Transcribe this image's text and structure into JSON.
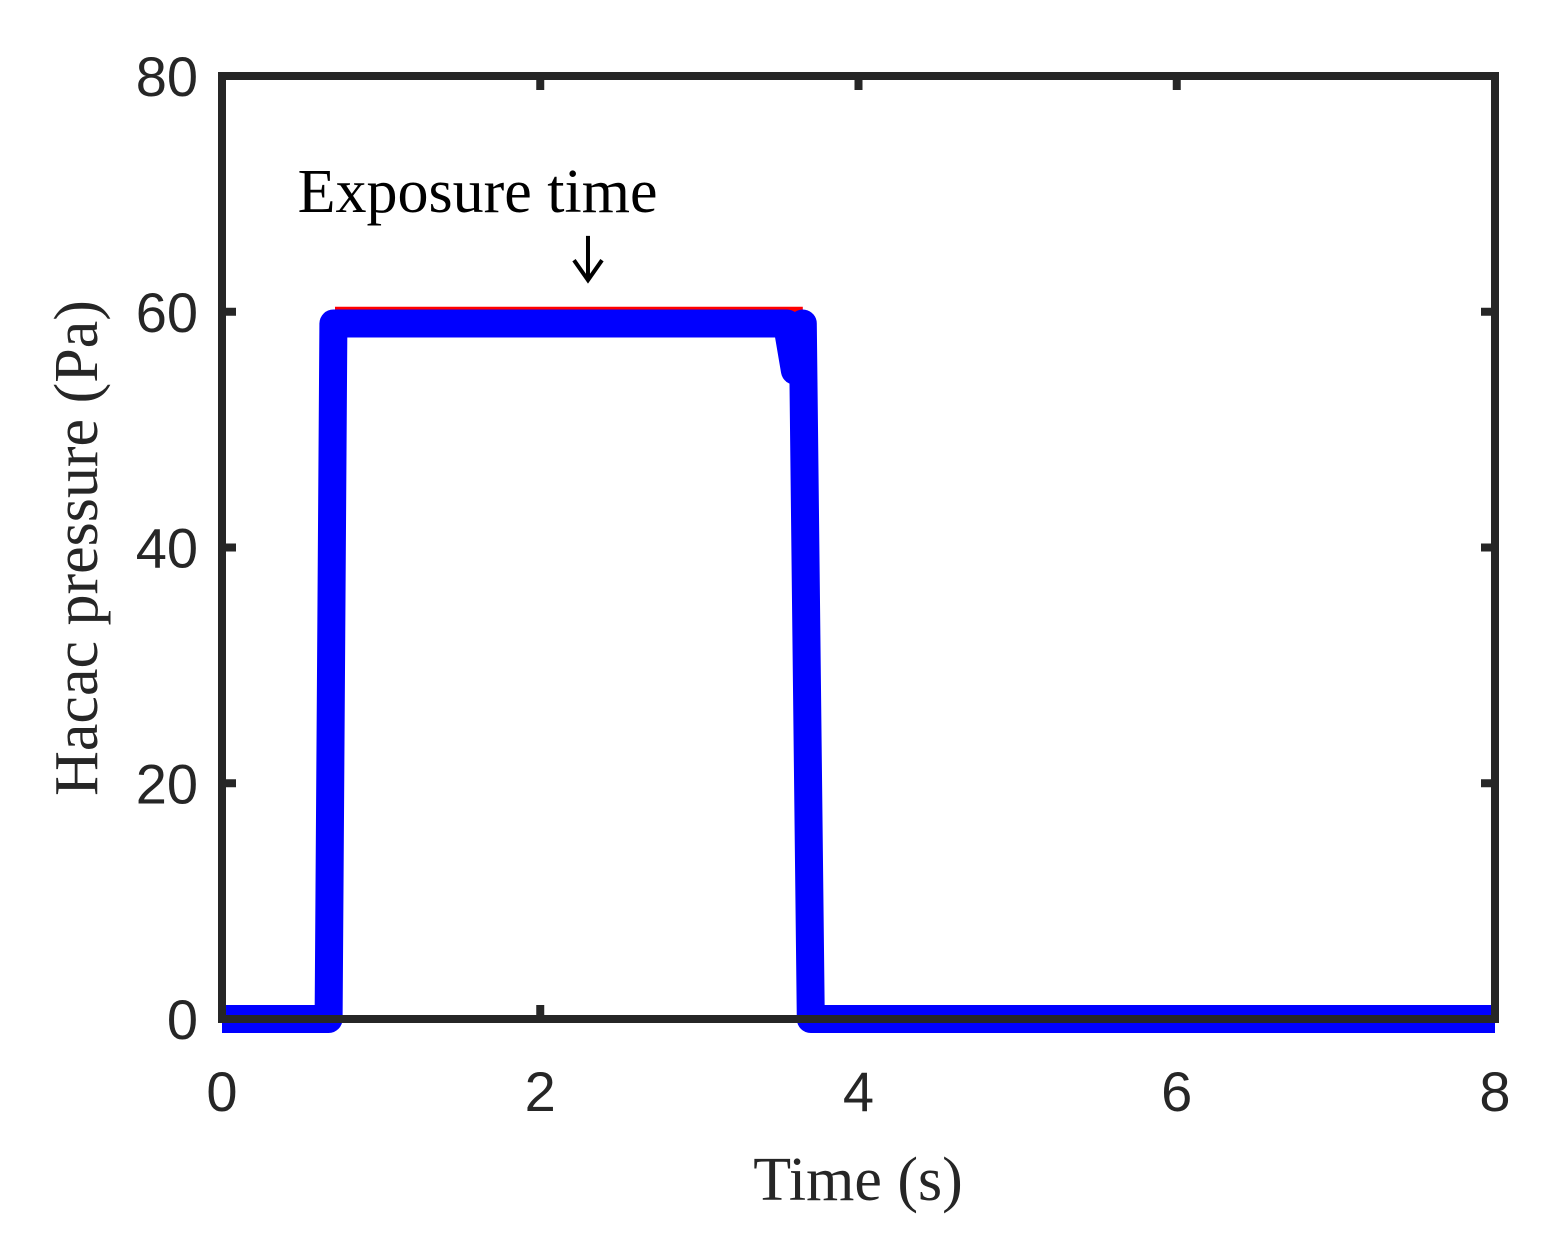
{
  "chart_data": {
    "type": "line",
    "xlabel": "Time (s)",
    "ylabel": "Hacac pressure (Pa)",
    "xlim": [
      0,
      8
    ],
    "ylim": [
      0,
      80
    ],
    "xticks": [
      0,
      2,
      4,
      6,
      8
    ],
    "xtick_labels": [
      "0",
      "2",
      "4",
      "6",
      "8"
    ],
    "yticks": [
      0,
      20,
      40,
      60,
      80
    ],
    "ytick_labels": [
      "0",
      "20",
      "40",
      "60",
      "80"
    ],
    "grid": false,
    "legend": "none",
    "series": [
      {
        "color": "#ff0000",
        "x": [
          0.71,
          3.65
        ],
        "y": [
          60,
          60
        ]
      },
      {
        "color": "#0000ff",
        "x": [
          0,
          0.67,
          0.7,
          0.8,
          3.55,
          3.6,
          3.65,
          3.7,
          8
        ],
        "y": [
          0,
          0,
          59,
          59,
          59,
          55,
          59,
          0,
          0
        ]
      }
    ],
    "annotations": [
      {
        "text": "Exposure time",
        "x": 2.8,
        "y": 70,
        "arrow_to": [
          2.3,
          62
        ]
      }
    ]
  }
}
